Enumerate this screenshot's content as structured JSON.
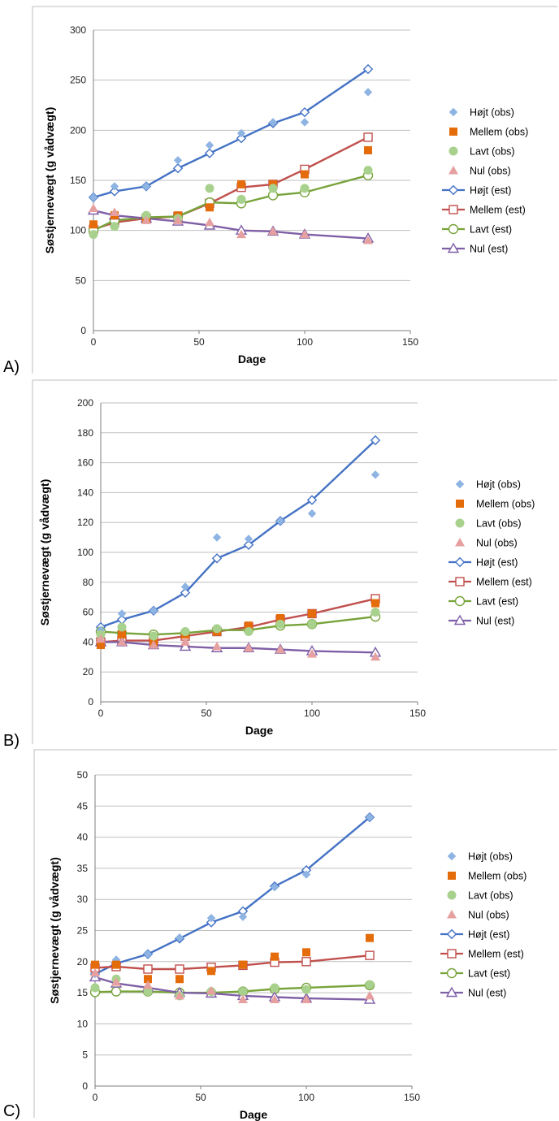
{
  "legend": {
    "labels": [
      "Højt (obs)",
      "Mellem (obs)",
      "Lavt (obs)",
      "Nul (obs)",
      "Højt (est)",
      "Mellem (est)",
      "Lavt (est)",
      "Nul (est)"
    ],
    "colors": {
      "hojt": "#4472C4",
      "hojt_obs": "#8EB4E3",
      "mellem": "#C0504D",
      "mellem_obs": "#E46C0A",
      "lavt": "#77A33A",
      "lavt_obs": "#A9D18E",
      "nul": "#7F5FA6",
      "nul_obs": "#E6A0A0"
    }
  },
  "chart_data": [
    {
      "panel_label": "A)",
      "type": "scatter",
      "xlabel": "Dage",
      "ylabel": "Søstjernevægt (g vådvægt)",
      "xlim": [
        0,
        150
      ],
      "ylim": [
        0,
        300
      ],
      "xticks": [
        0,
        50,
        100,
        150
      ],
      "yticks": [
        0,
        50,
        100,
        150,
        200,
        250,
        300
      ],
      "grid": "horizontal",
      "legend_position": "right",
      "series": [
        {
          "name": "Højt (obs)",
          "kind": "obs",
          "marker": "diamond",
          "color": "#8EB4E3",
          "x": [
            0,
            10,
            25,
            40,
            55,
            70,
            85,
            100,
            130
          ],
          "y": [
            133,
            144,
            144,
            170,
            185,
            197,
            208,
            208,
            238
          ]
        },
        {
          "name": "Mellem (obs)",
          "kind": "obs",
          "marker": "square",
          "color": "#E46C0A",
          "x": [
            0,
            10,
            25,
            40,
            55,
            70,
            85,
            100,
            130
          ],
          "y": [
            106,
            115,
            112,
            115,
            123,
            146,
            146,
            156,
            180
          ]
        },
        {
          "name": "Lavt (obs)",
          "kind": "obs",
          "marker": "circle",
          "color": "#A9D18E",
          "x": [
            0,
            10,
            25,
            40,
            55,
            70,
            85,
            100,
            130
          ],
          "y": [
            96,
            104,
            115,
            112,
            142,
            131,
            142,
            142,
            160
          ]
        },
        {
          "name": "Nul (obs)",
          "kind": "obs",
          "marker": "triangle",
          "color": "#E6A0A0",
          "x": [
            0,
            10,
            25,
            40,
            55,
            70,
            85,
            100,
            130
          ],
          "y": [
            122,
            118,
            110,
            110,
            108,
            96,
            99,
            96,
            90
          ]
        },
        {
          "name": "Højt (est)",
          "kind": "est",
          "marker": "diamond",
          "color": "#4472C4",
          "x": [
            0,
            10,
            25,
            40,
            55,
            70,
            85,
            100,
            130
          ],
          "y": [
            133,
            139,
            144,
            162,
            177,
            192,
            207,
            218,
            261
          ]
        },
        {
          "name": "Mellem (est)",
          "kind": "est",
          "marker": "square",
          "color": "#C0504D",
          "x": [
            0,
            10,
            25,
            40,
            55,
            70,
            85,
            100,
            130
          ],
          "y": [
            101,
            108,
            112,
            114,
            127,
            143,
            146,
            161,
            193
          ]
        },
        {
          "name": "Lavt (est)",
          "kind": "est",
          "marker": "circle",
          "color": "#77A33A",
          "x": [
            0,
            10,
            25,
            40,
            55,
            70,
            85,
            100,
            130
          ],
          "y": [
            100,
            110,
            113,
            114,
            128,
            127,
            135,
            138,
            155
          ]
        },
        {
          "name": "Nul (est)",
          "kind": "est",
          "marker": "triangle",
          "color": "#7F5FA6",
          "x": [
            0,
            10,
            25,
            40,
            55,
            70,
            85,
            100,
            130
          ],
          "y": [
            120,
            115,
            112,
            109,
            105,
            100,
            99,
            96,
            92
          ]
        }
      ]
    },
    {
      "panel_label": "B)",
      "type": "scatter",
      "xlabel": "Dage",
      "ylabel": "Søstjernevægt (g vådvægt)",
      "xlim": [
        0,
        150
      ],
      "ylim": [
        0,
        200
      ],
      "xticks": [
        0,
        50,
        100,
        150
      ],
      "yticks": [
        0,
        20,
        40,
        60,
        80,
        100,
        120,
        140,
        160,
        180,
        200
      ],
      "grid": "horizontal",
      "legend_position": "right",
      "series": [
        {
          "name": "Højt (obs)",
          "kind": "obs",
          "marker": "diamond",
          "color": "#8EB4E3",
          "x": [
            0,
            10,
            25,
            40,
            55,
            70,
            85,
            100,
            130
          ],
          "y": [
            48,
            59,
            61,
            77,
            110,
            109,
            121,
            126,
            152
          ]
        },
        {
          "name": "Mellem (obs)",
          "kind": "obs",
          "marker": "square",
          "color": "#E46C0A",
          "x": [
            0,
            10,
            25,
            40,
            55,
            70,
            85,
            100,
            130
          ],
          "y": [
            38,
            45,
            40,
            45,
            47,
            51,
            56,
            59,
            66
          ]
        },
        {
          "name": "Lavt (obs)",
          "kind": "obs",
          "marker": "circle",
          "color": "#A9D18E",
          "x": [
            0,
            10,
            25,
            40,
            55,
            70,
            85,
            100,
            130
          ],
          "y": [
            45,
            50,
            44,
            47,
            49,
            47,
            52,
            52,
            60
          ]
        },
        {
          "name": "Nul (obs)",
          "kind": "obs",
          "marker": "triangle",
          "color": "#E6A0A0",
          "x": [
            0,
            10,
            25,
            40,
            55,
            70,
            85,
            100,
            130
          ],
          "y": [
            42,
            40,
            38,
            40,
            37,
            36,
            35,
            32,
            30
          ]
        },
        {
          "name": "Højt (est)",
          "kind": "est",
          "marker": "diamond",
          "color": "#4472C4",
          "x": [
            0,
            10,
            25,
            40,
            55,
            70,
            85,
            100,
            130
          ],
          "y": [
            50,
            55,
            61,
            73,
            96,
            105,
            121,
            135,
            175
          ]
        },
        {
          "name": "Mellem (est)",
          "kind": "est",
          "marker": "square",
          "color": "#C0504D",
          "x": [
            0,
            10,
            25,
            40,
            55,
            70,
            85,
            100,
            130
          ],
          "y": [
            40,
            41,
            41,
            44,
            47,
            50,
            55,
            59,
            69
          ]
        },
        {
          "name": "Lavt (est)",
          "kind": "est",
          "marker": "circle",
          "color": "#77A33A",
          "x": [
            0,
            10,
            25,
            40,
            55,
            70,
            85,
            100,
            130
          ],
          "y": [
            47,
            46,
            45,
            46,
            48,
            48,
            51,
            52,
            57
          ]
        },
        {
          "name": "Nul (est)",
          "kind": "est",
          "marker": "triangle",
          "color": "#7F5FA6",
          "x": [
            0,
            10,
            25,
            40,
            55,
            70,
            85,
            100,
            130
          ],
          "y": [
            40,
            40,
            38,
            37,
            36,
            36,
            35,
            34,
            33
          ]
        }
      ]
    },
    {
      "panel_label": "C)",
      "type": "scatter",
      "xlabel": "Dage",
      "ylabel": "Søstjernevægt (g vådvægt)",
      "xlim": [
        0,
        150
      ],
      "ylim": [
        0,
        50
      ],
      "xticks": [
        0,
        50,
        100,
        150
      ],
      "yticks": [
        0,
        5,
        10,
        15,
        20,
        25,
        30,
        35,
        40,
        45,
        50
      ],
      "grid": "horizontal",
      "legend_position": "right",
      "series": [
        {
          "name": "Højt (obs)",
          "kind": "obs",
          "marker": "diamond",
          "color": "#8EB4E3",
          "x": [
            0,
            10,
            25,
            40,
            55,
            70,
            85,
            100,
            130
          ],
          "y": [
            18,
            20.3,
            21.2,
            23.8,
            27,
            27.2,
            32,
            34,
            43.2
          ]
        },
        {
          "name": "Mellem (obs)",
          "kind": "obs",
          "marker": "square",
          "color": "#E46C0A",
          "x": [
            0,
            10,
            25,
            40,
            55,
            70,
            85,
            100,
            130
          ],
          "y": [
            19.5,
            19.5,
            17.2,
            17.2,
            18.5,
            19.5,
            20.8,
            21.5,
            23.8
          ]
        },
        {
          "name": "Lavt (obs)",
          "kind": "obs",
          "marker": "circle",
          "color": "#A9D18E",
          "x": [
            0,
            10,
            25,
            40,
            55,
            70,
            85,
            100,
            130
          ],
          "y": [
            15.8,
            17.2,
            15.2,
            14.5,
            15.2,
            15.2,
            15.8,
            15.5,
            16.3
          ]
        },
        {
          "name": "Nul (obs)",
          "kind": "obs",
          "marker": "triangle",
          "color": "#E6A0A0",
          "x": [
            0,
            10,
            25,
            40,
            55,
            70,
            85,
            100,
            130
          ],
          "y": [
            18.2,
            16.7,
            16.2,
            14.5,
            15.3,
            13.9,
            13.9,
            13.9,
            14.5
          ]
        },
        {
          "name": "Højt (est)",
          "kind": "est",
          "marker": "diamond",
          "color": "#4472C4",
          "x": [
            0,
            10,
            25,
            40,
            55,
            70,
            85,
            100,
            130
          ],
          "y": [
            18,
            19.7,
            21.2,
            23.7,
            26.3,
            28.1,
            32.1,
            34.7,
            43.2
          ]
        },
        {
          "name": "Mellem (est)",
          "kind": "est",
          "marker": "square",
          "color": "#C0504D",
          "x": [
            0,
            10,
            25,
            40,
            55,
            70,
            85,
            100,
            130
          ],
          "y": [
            19,
            19.2,
            18.8,
            18.8,
            19.1,
            19.4,
            19.9,
            20,
            21
          ]
        },
        {
          "name": "Lavt (est)",
          "kind": "est",
          "marker": "circle",
          "color": "#77A33A",
          "x": [
            0,
            10,
            25,
            40,
            55,
            70,
            85,
            100,
            130
          ],
          "y": [
            15.1,
            15.2,
            15.2,
            15,
            15,
            15.2,
            15.6,
            15.8,
            16.2
          ]
        },
        {
          "name": "Nul (est)",
          "kind": "est",
          "marker": "triangle",
          "color": "#7F5FA6",
          "x": [
            0,
            10,
            25,
            40,
            55,
            70,
            85,
            100,
            130
          ],
          "y": [
            17.5,
            16.5,
            15.8,
            15,
            14.9,
            14.5,
            14.3,
            14.1,
            13.9
          ]
        }
      ]
    }
  ]
}
